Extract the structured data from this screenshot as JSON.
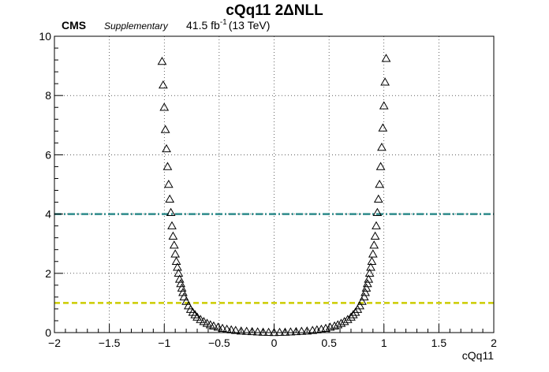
{
  "chart_data": {
    "type": "scatter",
    "title": "cQq11 2ΔNLL",
    "header": {
      "experiment": "CMS",
      "label": "Supplementary",
      "lumi": "41.5 fb",
      "lumi_exp": "-1",
      "energy": "(13 TeV)"
    },
    "xlabel": "cQq11",
    "ylabel": "",
    "xlim": [
      -2,
      2
    ],
    "ylim": [
      0,
      10
    ],
    "xticks": [
      -2,
      -1.5,
      -1,
      -0.5,
      0,
      0.5,
      1,
      1.5,
      2
    ],
    "xtick_labels": [
      "−2",
      "−1.5",
      "−1",
      "−0.5",
      "0",
      "0.5",
      "1",
      "1.5",
      "2"
    ],
    "yticks": [
      0,
      2,
      4,
      6,
      8,
      10
    ],
    "ytick_labels": [
      "0",
      "2",
      "4",
      "6",
      "8",
      "10"
    ],
    "grid": true,
    "marker": "open-triangle",
    "series": [
      {
        "values": "computed",
        "x_range": [
          -1.02,
          1.02
        ],
        "points": 81
      }
    ],
    "points": [
      [
        -1.02,
        9.15
      ],
      [
        -1.01,
        8.35
      ],
      [
        -1.0,
        7.6
      ],
      [
        -0.99,
        6.85
      ],
      [
        -0.98,
        6.2
      ],
      [
        -0.97,
        5.6
      ],
      [
        -0.96,
        5.0
      ],
      [
        -0.95,
        4.5
      ],
      [
        -0.94,
        4.05
      ],
      [
        -0.93,
        3.6
      ],
      [
        -0.92,
        3.25
      ],
      [
        -0.91,
        2.95
      ],
      [
        -0.9,
        2.65
      ],
      [
        -0.89,
        2.4
      ],
      [
        -0.88,
        2.2
      ],
      [
        -0.87,
        2.0
      ],
      [
        -0.86,
        1.8
      ],
      [
        -0.85,
        1.65
      ],
      [
        -0.84,
        1.5
      ],
      [
        -0.83,
        1.35
      ],
      [
        -0.82,
        1.2
      ],
      [
        -0.8,
        1.05
      ],
      [
        -0.78,
        0.9
      ],
      [
        -0.76,
        0.78
      ],
      [
        -0.74,
        0.68
      ],
      [
        -0.72,
        0.6
      ],
      [
        -0.7,
        0.52
      ],
      [
        -0.67,
        0.44
      ],
      [
        -0.64,
        0.37
      ],
      [
        -0.61,
        0.31
      ],
      [
        -0.58,
        0.26
      ],
      [
        -0.55,
        0.22
      ],
      [
        -0.51,
        0.18
      ],
      [
        -0.47,
        0.14
      ],
      [
        -0.43,
        0.11
      ],
      [
        -0.39,
        0.09
      ],
      [
        -0.35,
        0.07
      ],
      [
        -0.3,
        0.05
      ],
      [
        -0.25,
        0.04
      ],
      [
        -0.2,
        0.03
      ],
      [
        -0.15,
        0.02
      ],
      [
        -0.1,
        0.01
      ],
      [
        -0.05,
        0.005
      ],
      [
        0.0,
        0.0
      ],
      [
        0.05,
        0.005
      ],
      [
        0.1,
        0.01
      ],
      [
        0.15,
        0.02
      ],
      [
        0.2,
        0.03
      ],
      [
        0.25,
        0.04
      ],
      [
        0.3,
        0.05
      ],
      [
        0.35,
        0.07
      ],
      [
        0.39,
        0.09
      ],
      [
        0.43,
        0.11
      ],
      [
        0.47,
        0.14
      ],
      [
        0.51,
        0.18
      ],
      [
        0.55,
        0.22
      ],
      [
        0.58,
        0.26
      ],
      [
        0.61,
        0.31
      ],
      [
        0.64,
        0.37
      ],
      [
        0.67,
        0.44
      ],
      [
        0.7,
        0.52
      ],
      [
        0.72,
        0.6
      ],
      [
        0.74,
        0.68
      ],
      [
        0.76,
        0.78
      ],
      [
        0.78,
        0.9
      ],
      [
        0.8,
        1.05
      ],
      [
        0.82,
        1.2
      ],
      [
        0.83,
        1.35
      ],
      [
        0.84,
        1.5
      ],
      [
        0.85,
        1.65
      ],
      [
        0.86,
        1.8
      ],
      [
        0.87,
        2.0
      ],
      [
        0.88,
        2.2
      ],
      [
        0.89,
        2.4
      ],
      [
        0.9,
        2.65
      ],
      [
        0.91,
        2.95
      ],
      [
        0.92,
        3.25
      ],
      [
        0.93,
        3.6
      ],
      [
        0.94,
        4.05
      ],
      [
        0.95,
        4.5
      ],
      [
        0.96,
        5.0
      ],
      [
        0.97,
        5.6
      ],
      [
        0.98,
        6.25
      ],
      [
        0.99,
        6.9
      ],
      [
        1.0,
        7.65
      ],
      [
        1.01,
        8.45
      ],
      [
        1.02,
        9.25
      ]
    ],
    "reference_lines": [
      {
        "y": 1,
        "color": "#cccc00",
        "style": "dashed"
      },
      {
        "y": 4,
        "color": "#2e8b8b",
        "style": "dash-dot"
      }
    ]
  },
  "colors": {
    "marker": "#000000",
    "line_1sigma": "#cccc00",
    "line_2sigma": "#2e8b8b",
    "grid": "#000000"
  }
}
